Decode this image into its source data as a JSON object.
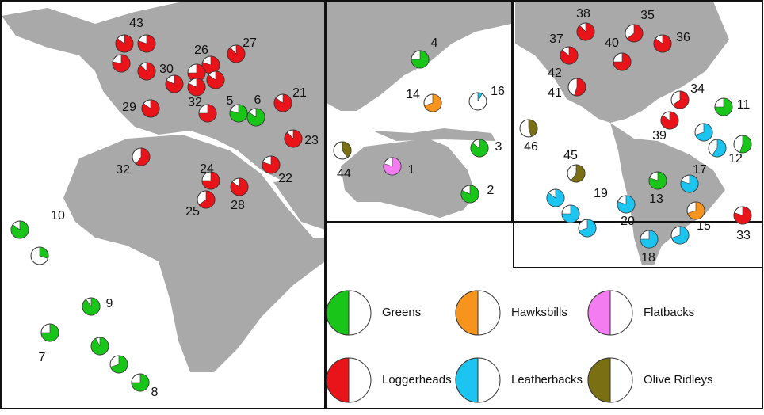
{
  "legend": [
    {
      "name": "Greens",
      "color": "#19c519"
    },
    {
      "name": "Hawksbills",
      "color": "#f7941d"
    },
    {
      "name": "Flatbacks",
      "color": "#f27cf0"
    },
    {
      "name": "Loggerheads",
      "color": "#e8141a"
    },
    {
      "name": "Leatherbacks",
      "color": "#1cc4f0"
    },
    {
      "name": "Olive Ridleys",
      "color": "#7a6f12"
    }
  ],
  "sites": [
    {
      "label": "43",
      "color": "#e8141a",
      "shares": [
        85,
        80,
        78,
        88
      ]
    },
    {
      "label": "26",
      "color": "#e8141a",
      "shares": [
        80,
        75,
        85,
        82
      ]
    },
    {
      "label": "27",
      "color": "#e8141a",
      "shares": [
        88
      ]
    },
    {
      "label": "30",
      "color": "#e8141a",
      "shares": [
        82
      ]
    },
    {
      "label": "32",
      "color": "#e8141a",
      "shares": [
        75
      ]
    },
    {
      "label": "29",
      "color": "#e8141a",
      "shares": [
        85
      ]
    },
    {
      "label": "5",
      "color": "#19c519",
      "shares": [
        80
      ]
    },
    {
      "label": "6",
      "color": "#19c519",
      "shares": [
        85
      ]
    },
    {
      "label": "21",
      "color": "#e8141a",
      "shares": [
        85
      ]
    },
    {
      "label": "23",
      "color": "#e8141a",
      "shares": [
        88
      ]
    },
    {
      "label": "22",
      "color": "#e8141a",
      "shares": [
        80
      ]
    },
    {
      "label": "24",
      "color": "#e8141a",
      "shares": [
        75
      ]
    },
    {
      "label": "25",
      "color": "#e8141a",
      "shares": [
        65
      ]
    },
    {
      "label": "28",
      "color": "#e8141a",
      "shares": [
        85
      ]
    },
    {
      "label": "32",
      "color": "#e8141a",
      "shares": [
        60
      ]
    },
    {
      "label": "10",
      "color": "#19c519",
      "shares": [
        85,
        30
      ]
    },
    {
      "label": "9",
      "color": "#19c519",
      "shares": [
        90
      ]
    },
    {
      "label": "7",
      "color": "#19c519",
      "shares": [
        75
      ]
    },
    {
      "label": "8",
      "color": "#19c519",
      "shares": [
        92,
        70,
        75
      ]
    },
    {
      "label": "4",
      "color": "#19c519",
      "shares": [
        75
      ]
    },
    {
      "label": "14",
      "color": "#f7941d",
      "shares": [
        70
      ]
    },
    {
      "label": "16",
      "color": "#1cc4f0",
      "shares": [
        8
      ]
    },
    {
      "label": "3",
      "color": "#19c519",
      "shares": [
        85
      ]
    },
    {
      "label": "44",
      "color": "#7a6f12",
      "shares": [
        40
      ]
    },
    {
      "label": "1",
      "color": "#f27cf0",
      "shares": [
        80
      ]
    },
    {
      "label": "2",
      "color": "#19c519",
      "shares": [
        82
      ]
    },
    {
      "label": "38",
      "color": "#e8141a",
      "shares": [
        88
      ]
    },
    {
      "label": "35",
      "color": "#e8141a",
      "shares": [
        65
      ]
    },
    {
      "label": "36",
      "color": "#e8141a",
      "shares": [
        85
      ]
    },
    {
      "label": "37",
      "color": "#e8141a",
      "shares": [
        85
      ]
    },
    {
      "label": "40",
      "color": "#e8141a",
      "shares": [
        75
      ]
    },
    {
      "label": "42",
      "color": "#e8141a",
      "shares": []
    },
    {
      "label": "41",
      "color": "#e8141a",
      "shares": [
        55
      ]
    },
    {
      "label": "34",
      "color": "#e8141a",
      "shares": [
        65
      ]
    },
    {
      "label": "39",
      "color": "#e8141a",
      "shares": [
        85
      ]
    },
    {
      "label": "11",
      "color": "#19c519",
      "shares": [
        75
      ]
    },
    {
      "label": "12",
      "color": "#19c519",
      "shares": [
        55
      ]
    },
    {
      "label": "46",
      "color": "#7a6f12",
      "shares": [
        45
      ]
    },
    {
      "label": "45",
      "color": "#7a6f12",
      "shares": [
        60
      ]
    },
    {
      "label": "17",
      "color": "#1cc4f0",
      "shares": [
        70,
        60,
        80
      ]
    },
    {
      "label": "13",
      "color": "#19c519",
      "shares": [
        80
      ]
    },
    {
      "label": "19",
      "color": "#1cc4f0",
      "shares": [
        85,
        75,
        70
      ]
    },
    {
      "label": "20",
      "color": "#1cc4f0",
      "shares": [
        80
      ]
    },
    {
      "label": "15",
      "color": "#f7941d",
      "shares": [
        70
      ]
    },
    {
      "label": "33",
      "color": "#e8141a",
      "shares": [
        80
      ]
    },
    {
      "label": "18",
      "color": "#1cc4f0",
      "shares": [
        75,
        70
      ]
    }
  ]
}
